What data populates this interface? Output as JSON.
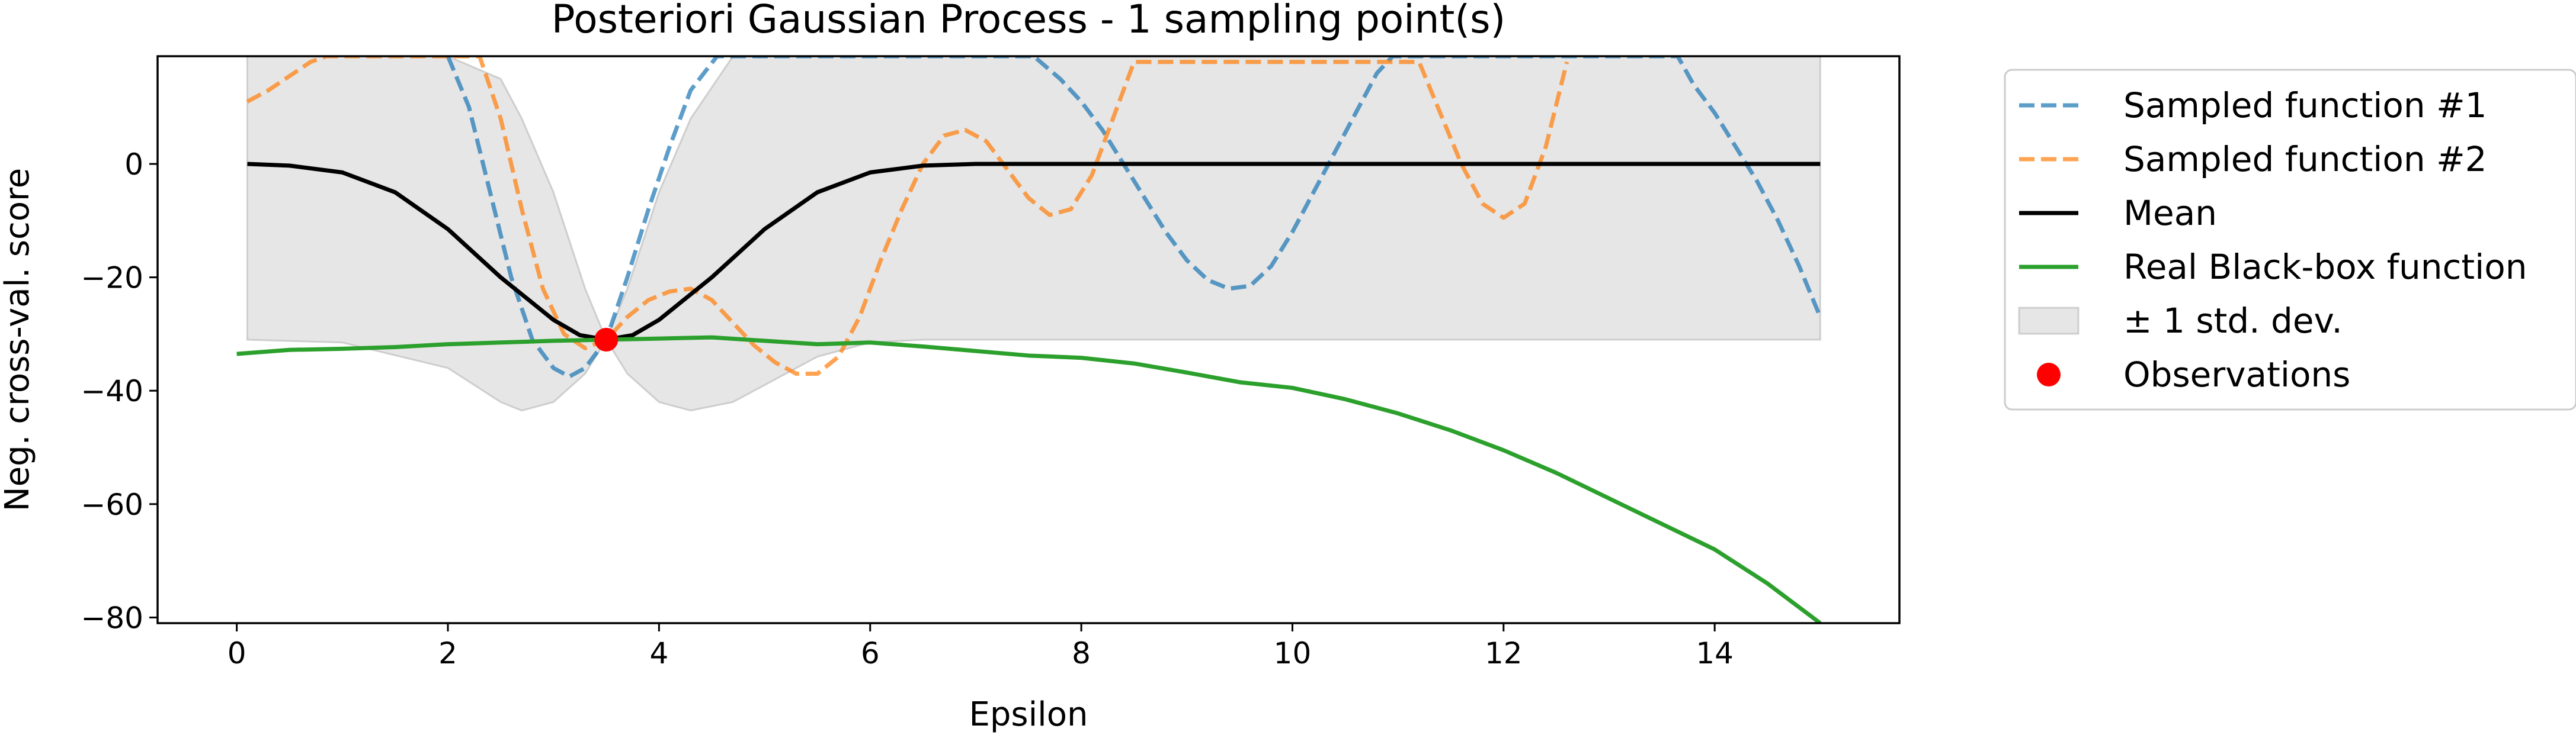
{
  "chart_data": {
    "type": "line",
    "title": "Posteriori Gaussian Process - 1 sampling point(s)",
    "xlabel": "Epsilon",
    "ylabel": "Neg. cross-val. score",
    "xlim": [
      -0.75,
      15.75
    ],
    "ylim": [
      -81,
      19
    ],
    "xticks": [
      0,
      2,
      4,
      6,
      8,
      10,
      12,
      14
    ],
    "yticks": [
      0,
      -20,
      -40,
      -60,
      -80
    ],
    "xtick_labels": [
      "0",
      "2",
      "4",
      "6",
      "8",
      "10",
      "12",
      "14"
    ],
    "ytick_labels": [
      "0",
      "−20",
      "−40",
      "−60",
      "−80"
    ],
    "grid": false,
    "legend_position": "outside right, top",
    "legend": [
      {
        "label": "Sampled function #1",
        "style": "dashed-line",
        "color": "#1f77b4"
      },
      {
        "label": "Sampled function #2",
        "style": "dashed-line",
        "color": "#ff7f0e"
      },
      {
        "label": "Mean",
        "style": "solid-line",
        "color": "#000000"
      },
      {
        "label": "Real Black-box function",
        "style": "solid-line",
        "color": "#2ca02c"
      },
      {
        "label": "± 1 std. dev.",
        "style": "patch",
        "color": "#b0b0b0"
      },
      {
        "label": "Observations",
        "style": "marker",
        "color": "#ff0000"
      }
    ],
    "band": {
      "name": "± 1 std. dev.",
      "color": "#b0b0b0",
      "x": [
        0.1,
        1.0,
        2.0,
        2.5,
        2.7,
        3.0,
        3.3,
        3.5,
        3.7,
        4.0,
        4.3,
        4.7,
        5.0,
        5.5,
        6.0,
        6.5,
        7.0,
        8.0,
        10.0,
        12.0,
        15.0
      ],
      "upper": [
        19,
        19,
        19,
        15,
        8,
        -5,
        -22,
        -31,
        -22,
        -5,
        8,
        19,
        19,
        19,
        19,
        19,
        19,
        19,
        19,
        19,
        19
      ],
      "lower": [
        -31,
        -31.5,
        -36,
        -42,
        -43.5,
        -42,
        -37,
        -31,
        -37,
        -42,
        -43.5,
        -42,
        -39,
        -34,
        -31.5,
        -31,
        -31,
        -31,
        -31,
        -31,
        -31
      ]
    },
    "series": [
      {
        "name": "Sampled function #1",
        "color": "#1f77b4",
        "style": "dashed",
        "x": [
          2.0,
          2.2,
          2.4,
          2.6,
          2.8,
          3.0,
          3.15,
          3.3,
          3.5,
          3.7,
          3.9,
          4.1,
          4.3,
          4.55,
          7.55,
          7.8,
          8.0,
          8.2,
          8.4,
          8.6,
          8.8,
          9.0,
          9.2,
          9.4,
          9.6,
          9.8,
          10.0,
          10.2,
          10.4,
          10.6,
          10.8,
          10.95,
          13.65,
          13.8,
          14.0,
          14.2,
          14.4,
          14.6,
          14.8,
          15.0
        ],
        "y": [
          19,
          10,
          -5,
          -20,
          -31,
          -36,
          -37.5,
          -36,
          -31,
          -20,
          -8,
          3,
          13,
          19,
          19,
          15,
          11,
          6,
          0,
          -6,
          -12,
          -17,
          -20.5,
          -22,
          -21.5,
          -18,
          -12,
          -5,
          2,
          9,
          16,
          19,
          19,
          14,
          9,
          3,
          -3,
          -10,
          -18,
          -27
        ]
      },
      {
        "name": "Sampled function #2",
        "color": "#ff7f0e",
        "style": "dashed",
        "x": [
          0.1,
          0.3,
          0.5,
          0.7,
          0.85,
          2.3,
          2.5,
          2.7,
          2.9,
          3.1,
          3.3,
          3.5,
          3.7,
          3.9,
          4.1,
          4.3,
          4.5,
          4.7,
          4.9,
          5.1,
          5.3,
          5.5,
          5.7,
          5.9,
          6.1,
          6.3,
          6.5,
          6.7,
          6.9,
          7.1,
          7.3,
          7.5,
          7.7,
          7.9,
          8.1,
          8.3,
          8.5,
          11.2,
          11.4,
          11.6,
          11.8,
          12.0,
          12.2,
          12.4,
          12.6
        ],
        "y": [
          11,
          13,
          15.5,
          18,
          19,
          19,
          8,
          -8,
          -22,
          -30,
          -32.5,
          -31,
          -27,
          -24,
          -22.5,
          -22,
          -24,
          -28,
          -32,
          -35,
          -37,
          -37,
          -34,
          -27,
          -17,
          -8,
          0,
          5,
          6,
          4,
          -1,
          -6,
          -9,
          -8,
          -2,
          8,
          18,
          18,
          9,
          0,
          -7,
          -9.5,
          -7,
          3,
          18
        ]
      },
      {
        "name": "Mean",
        "color": "#000000",
        "style": "solid",
        "x": [
          0.1,
          0.5,
          1.0,
          1.5,
          2.0,
          2.5,
          3.0,
          3.25,
          3.5,
          3.75,
          4.0,
          4.5,
          5.0,
          5.5,
          6.0,
          6.5,
          7.0,
          8.0,
          10.0,
          12.0,
          15.0
        ],
        "y": [
          0,
          -0.3,
          -1.5,
          -5,
          -11.5,
          -20,
          -27.5,
          -30.2,
          -31,
          -30.2,
          -27.5,
          -20,
          -11.5,
          -5,
          -1.5,
          -0.3,
          0,
          0,
          0,
          0,
          0
        ]
      },
      {
        "name": "Real Black-box function",
        "color": "#2ca02c",
        "style": "solid",
        "x": [
          0.0,
          0.5,
          1.0,
          1.5,
          2.0,
          2.5,
          3.0,
          3.5,
          4.0,
          4.5,
          5.0,
          5.5,
          6.0,
          6.5,
          7.0,
          7.5,
          8.0,
          8.5,
          9.0,
          9.5,
          10.0,
          10.5,
          11.0,
          11.5,
          12.0,
          12.5,
          13.0,
          13.5,
          14.0,
          14.5,
          15.0
        ],
        "y": [
          -33.5,
          -32.8,
          -32.6,
          -32.3,
          -31.8,
          -31.5,
          -31.2,
          -31.0,
          -30.8,
          -30.6,
          -31.2,
          -31.8,
          -31.5,
          -32.2,
          -33.0,
          -33.8,
          -34.2,
          -35.2,
          -36.8,
          -38.5,
          -39.5,
          -41.5,
          -44.0,
          -47.0,
          -50.5,
          -54.5,
          -59.0,
          -63.5,
          -68.0,
          -74.0,
          -81.0
        ]
      }
    ],
    "observations": {
      "name": "Observations",
      "color": "#ff0000",
      "x": [
        3.5
      ],
      "y": [
        -31
      ]
    }
  }
}
